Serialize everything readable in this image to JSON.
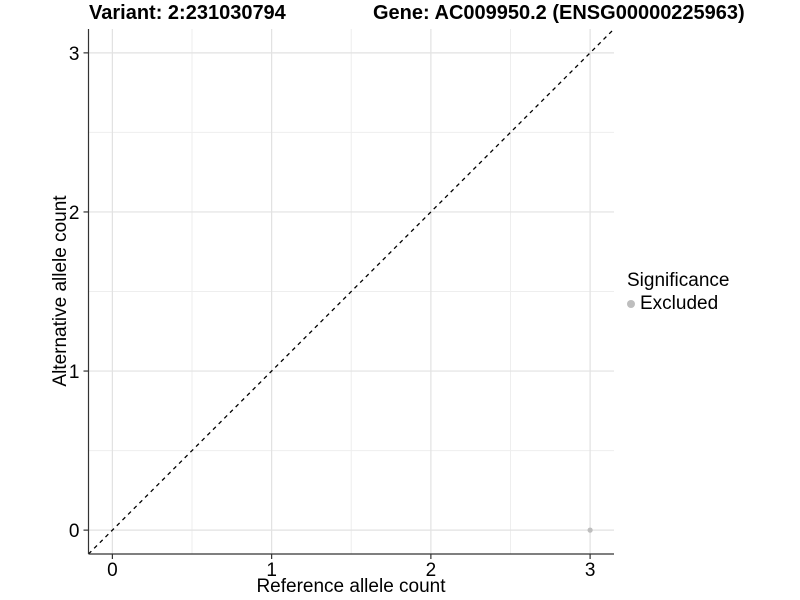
{
  "chart_data": {
    "type": "scatter",
    "titles": {
      "left": "Variant: 2:231030794",
      "right": "Gene: AC009950.2 (ENSG00000225963)"
    },
    "xlabel": "Reference allele count",
    "ylabel": "Alternative allele count",
    "xlim": [
      -0.15,
      3.15
    ],
    "ylim": [
      -0.15,
      3.15
    ],
    "x_ticks": [
      0,
      1,
      2,
      3
    ],
    "y_ticks": [
      0,
      1,
      2,
      3
    ],
    "x_minor_ticks": [
      0.5,
      1.5,
      2.5
    ],
    "y_minor_ticks": [
      0.5,
      1.5,
      2.5
    ],
    "grid": "major+minor",
    "identity_line": {
      "slope": 1,
      "intercept": 0,
      "style": "dashed",
      "color": "#000000"
    },
    "points": [
      {
        "x": 3,
        "y": 0,
        "series": "Excluded"
      }
    ],
    "legend": {
      "title": "Significance",
      "position": "right",
      "items": [
        {
          "label": "Excluded",
          "color": "#bebebe"
        }
      ]
    },
    "style": {
      "major_grid_color": "#e2e2e2",
      "minor_grid_color": "#eeeeee",
      "axis_line_color": "#333333",
      "background": "#ffffff"
    }
  }
}
